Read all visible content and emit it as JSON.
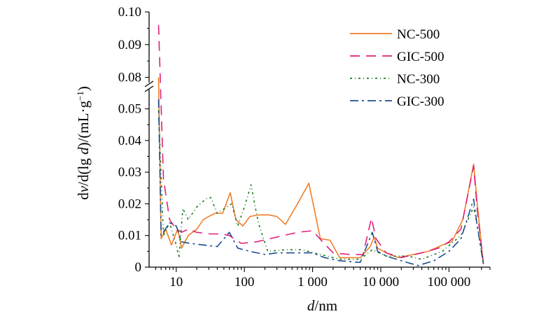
{
  "chart_data": {
    "type": "line",
    "xlabel": "d/nm",
    "ylabel": "dv/d(lg d)/(mL·g⁻¹)",
    "x_scale": "log",
    "xlim": [
      4,
      400000
    ],
    "y_broken_axis": true,
    "y_lower_range": [
      0,
      0.055
    ],
    "y_upper_range": [
      0.075,
      0.1
    ],
    "x_ticks": [
      {
        "value": 10,
        "label": "10"
      },
      {
        "value": 100,
        "label": "100"
      },
      {
        "value": 1000,
        "label": "1 000"
      },
      {
        "value": 10000,
        "label": "10 000"
      },
      {
        "value": 100000,
        "label": "100 000"
      }
    ],
    "y_ticks_lower": [
      {
        "value": 0,
        "label": "0"
      },
      {
        "value": 0.01,
        "label": "0.01"
      },
      {
        "value": 0.02,
        "label": "0.02"
      },
      {
        "value": 0.03,
        "label": "0.03"
      },
      {
        "value": 0.04,
        "label": "0.04"
      },
      {
        "value": 0.05,
        "label": "0.05"
      }
    ],
    "y_ticks_upper": [
      {
        "value": 0.08,
        "label": "0.08"
      },
      {
        "value": 0.09,
        "label": "0.09"
      },
      {
        "value": 0.1,
        "label": "0.10"
      }
    ],
    "legend_position": "top-right",
    "series": [
      {
        "name": "NC-500",
        "color": "#f07d28",
        "dash": "solid",
        "points": [
          [
            5.5,
            0.08
          ],
          [
            6,
            0.009
          ],
          [
            7,
            0.012
          ],
          [
            8.5,
            0.007
          ],
          [
            10.5,
            0.012
          ],
          [
            12,
            0.006
          ],
          [
            15,
            0.01
          ],
          [
            20,
            0.012
          ],
          [
            25,
            0.015
          ],
          [
            30,
            0.016
          ],
          [
            37,
            0.017
          ],
          [
            48,
            0.017
          ],
          [
            62,
            0.0235
          ],
          [
            75,
            0.015
          ],
          [
            95,
            0.013
          ],
          [
            120,
            0.016
          ],
          [
            160,
            0.0165
          ],
          [
            230,
            0.0165
          ],
          [
            300,
            0.016
          ],
          [
            400,
            0.0135
          ],
          [
            600,
            0.02
          ],
          [
            880,
            0.0265
          ],
          [
            1300,
            0.009
          ],
          [
            1800,
            0.0085
          ],
          [
            2500,
            0.003
          ],
          [
            3500,
            0.003
          ],
          [
            5000,
            0.003
          ],
          [
            7000,
            0.0065
          ],
          [
            8000,
            0.0095
          ],
          [
            9000,
            0.006
          ],
          [
            12000,
            0.0045
          ],
          [
            18000,
            0.003
          ],
          [
            30000,
            0.004
          ],
          [
            50000,
            0.005
          ],
          [
            80000,
            0.007
          ],
          [
            110000,
            0.008
          ],
          [
            160000,
            0.015
          ],
          [
            230000,
            0.0325
          ],
          [
            260000,
            0.02
          ],
          [
            320000,
            0.001
          ]
        ]
      },
      {
        "name": "GIC-500",
        "color": "#e0207a",
        "dash": "14,9",
        "points": [
          [
            5.5,
            0.096
          ],
          [
            6.5,
            0.028
          ],
          [
            8,
            0.015
          ],
          [
            10,
            0.012
          ],
          [
            12,
            0.011
          ],
          [
            15,
            0.012
          ],
          [
            20,
            0.011
          ],
          [
            30,
            0.0105
          ],
          [
            45,
            0.0105
          ],
          [
            60,
            0.01
          ],
          [
            90,
            0.0075
          ],
          [
            150,
            0.008
          ],
          [
            300,
            0.0095
          ],
          [
            600,
            0.011
          ],
          [
            1000,
            0.0115
          ],
          [
            1400,
            0.008
          ],
          [
            2000,
            0.0045
          ],
          [
            3500,
            0.004
          ],
          [
            5500,
            0.004
          ],
          [
            7300,
            0.0155
          ],
          [
            8500,
            0.009
          ],
          [
            12000,
            0.0045
          ],
          [
            20000,
            0.003
          ],
          [
            40000,
            0.0045
          ],
          [
            70000,
            0.006
          ],
          [
            100000,
            0.008
          ],
          [
            150000,
            0.012
          ],
          [
            230000,
            0.032
          ],
          [
            260000,
            0.018
          ],
          [
            320000,
            0.001
          ]
        ]
      },
      {
        "name": "NC-300",
        "color": "#1a7a1a",
        "dash": "3,4,1,4",
        "points": [
          [
            5.5,
            0.07
          ],
          [
            6.5,
            0.01
          ],
          [
            8,
            0.014
          ],
          [
            10,
            0.007
          ],
          [
            11,
            0.003
          ],
          [
            12.5,
            0.0185
          ],
          [
            15,
            0.015
          ],
          [
            20,
            0.019
          ],
          [
            27,
            0.0215
          ],
          [
            32,
            0.022
          ],
          [
            40,
            0.017
          ],
          [
            55,
            0.019
          ],
          [
            65,
            0.02
          ],
          [
            80,
            0.013
          ],
          [
            100,
            0.019
          ],
          [
            125,
            0.026
          ],
          [
            160,
            0.014
          ],
          [
            220,
            0.005
          ],
          [
            400,
            0.0055
          ],
          [
            700,
            0.0055
          ],
          [
            1300,
            0.004
          ],
          [
            2500,
            0.0025
          ],
          [
            5000,
            0.0025
          ],
          [
            7500,
            0.0055
          ],
          [
            12000,
            0.0035
          ],
          [
            25000,
            0.0035
          ],
          [
            40000,
            0.0025
          ],
          [
            80000,
            0.005
          ],
          [
            150000,
            0.01
          ],
          [
            230000,
            0.019
          ],
          [
            260000,
            0.013
          ],
          [
            320000,
            0.001
          ]
        ]
      },
      {
        "name": "GIC-300",
        "color": "#1d4e8f",
        "dash": "12,5,3,5",
        "points": [
          [
            5.5,
            0.053
          ],
          [
            6,
            0.01
          ],
          [
            8,
            0.014
          ],
          [
            10,
            0.013
          ],
          [
            12,
            0.008
          ],
          [
            16,
            0.0075
          ],
          [
            25,
            0.007
          ],
          [
            40,
            0.0065
          ],
          [
            60,
            0.011
          ],
          [
            80,
            0.006
          ],
          [
            120,
            0.005
          ],
          [
            200,
            0.004
          ],
          [
            300,
            0.0045
          ],
          [
            600,
            0.0045
          ],
          [
            1000,
            0.0045
          ],
          [
            1500,
            0.003
          ],
          [
            2500,
            0.002
          ],
          [
            5000,
            0.0015
          ],
          [
            7500,
            0.011
          ],
          [
            9000,
            0.005
          ],
          [
            12000,
            0.0035
          ],
          [
            20000,
            0.002
          ],
          [
            35000,
            0.0005
          ],
          [
            60000,
            0.002
          ],
          [
            100000,
            0.005
          ],
          [
            150000,
            0.009
          ],
          [
            230000,
            0.0215
          ],
          [
            260000,
            0.013
          ],
          [
            320000,
            0.001
          ]
        ]
      }
    ]
  }
}
